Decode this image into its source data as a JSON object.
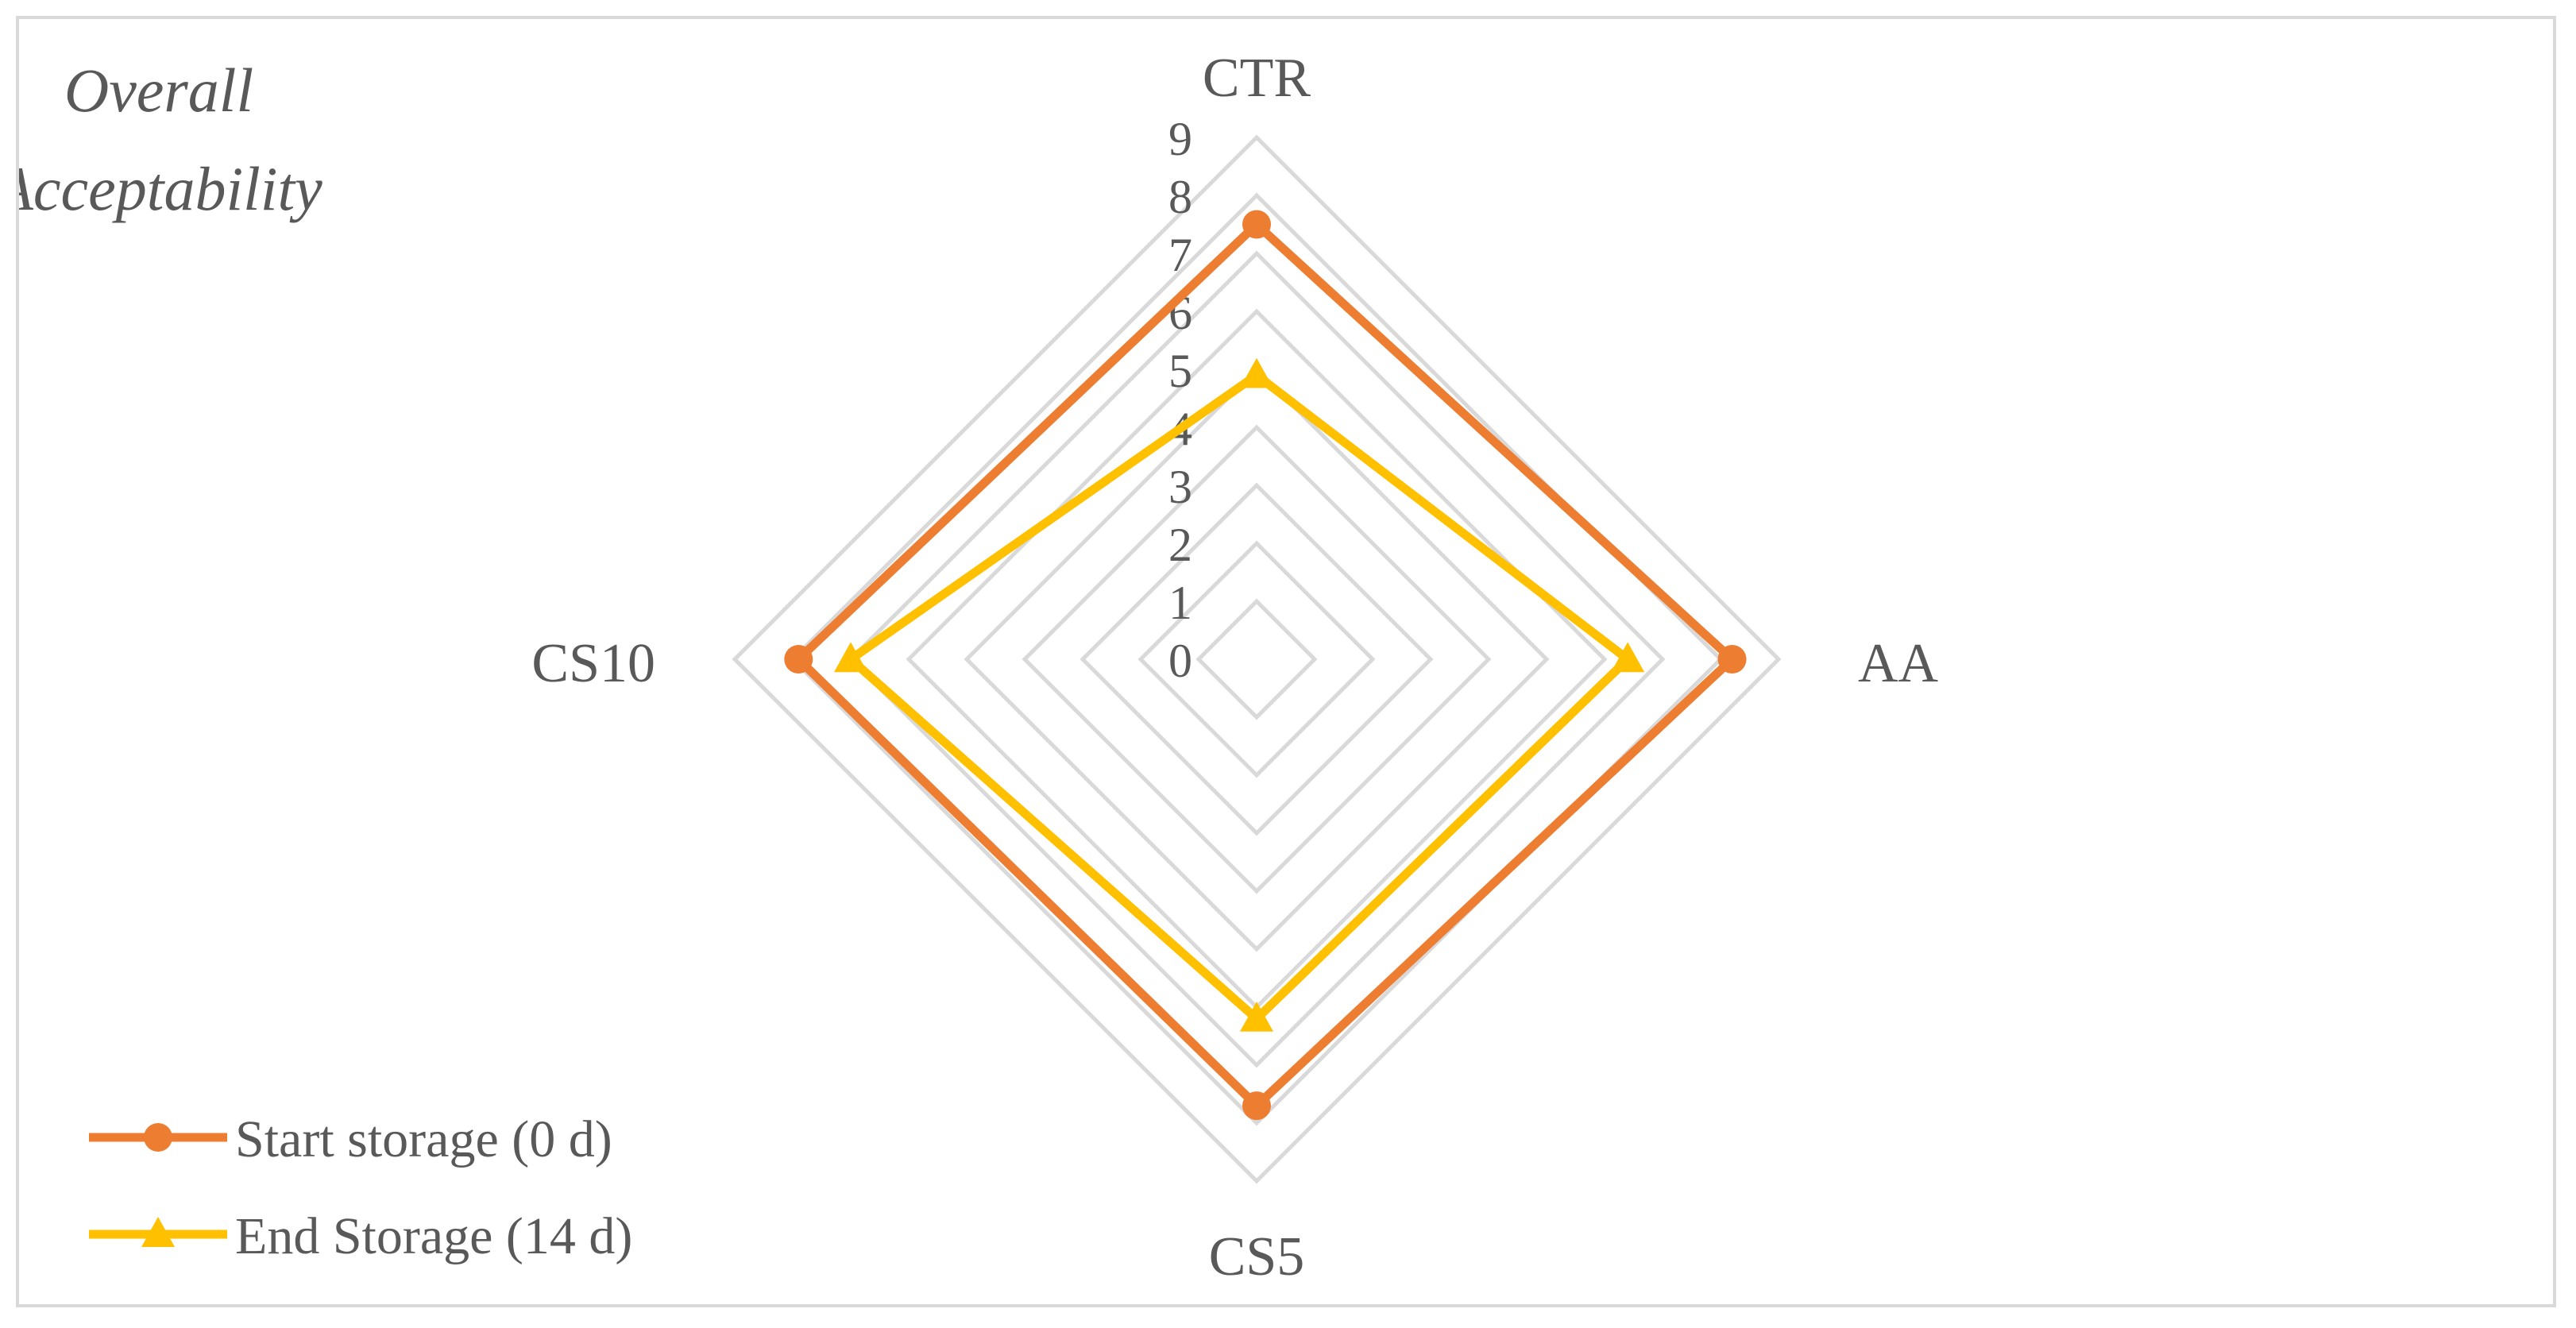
{
  "chart_data": {
    "type": "radar",
    "title": "Overall Acceptability",
    "categories": [
      "CTR",
      "AA",
      "CS5",
      "CS10"
    ],
    "scale_ticks": [
      "0",
      "1",
      "2",
      "3",
      "4",
      "5",
      "6",
      "7",
      "8",
      "9"
    ],
    "rmin": 0,
    "rmax": 9,
    "grid": true,
    "legend_position": "bottom-left",
    "series": [
      {
        "name": "Start storage (0 d)",
        "color": "#ED7D31",
        "marker": "circle",
        "values": [
          7.5,
          8.2,
          7.7,
          7.9
        ]
      },
      {
        "name": "End Storage (14 d)",
        "color": "#FFC000",
        "marker": "triangle",
        "values": [
          4.9,
          6.4,
          6.2,
          7.0
        ]
      }
    ]
  }
}
